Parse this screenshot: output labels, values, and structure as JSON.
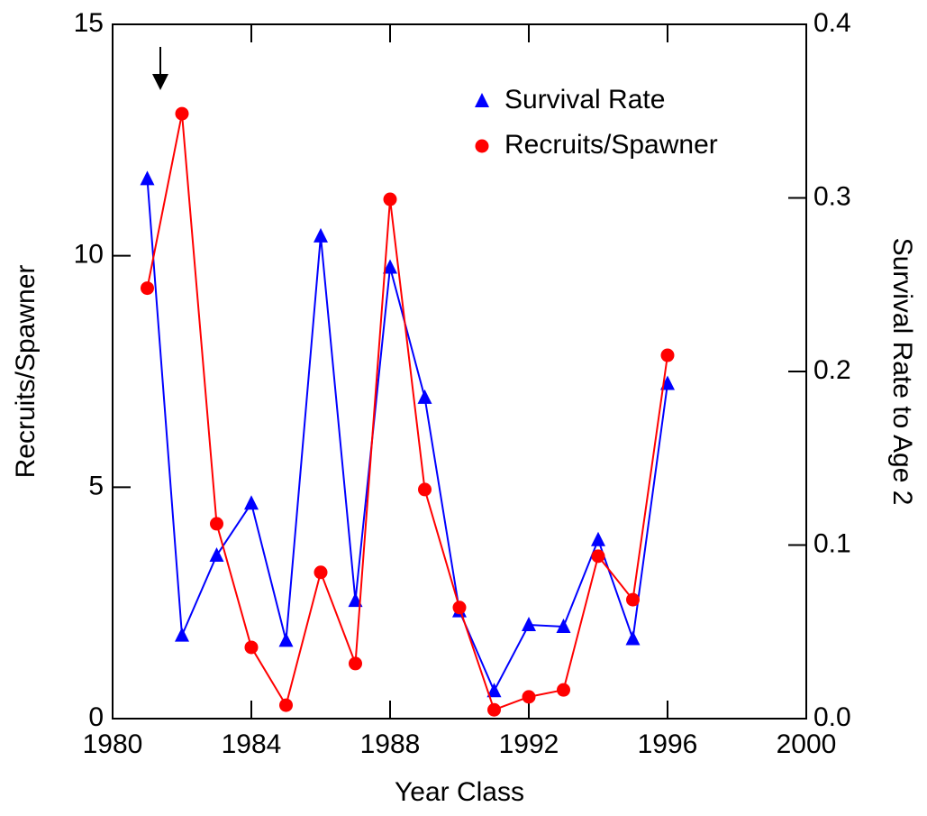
{
  "chart_data": {
    "type": "line",
    "xlabel": "Year Class",
    "ylabel": "Recruits/Spawner",
    "y2label": "Survival Rate to Age 2",
    "x": [
      1981,
      1982,
      1983,
      1984,
      1985,
      1986,
      1987,
      1988,
      1989,
      1990,
      1991,
      1992,
      1993,
      1994,
      1995,
      1996
    ],
    "series": [
      {
        "name": "Survival Rate",
        "color": "#0000ff",
        "marker": "triangle",
        "axis": "y2",
        "values": [
          0.311,
          0.048,
          0.094,
          0.124,
          0.045,
          0.278,
          0.068,
          0.26,
          0.185,
          0.062,
          0.016,
          0.054,
          0.053,
          0.103,
          0.046,
          0.193
        ]
      },
      {
        "name": "Recruits/Spawner",
        "color": "#ff0000",
        "marker": "circle",
        "axis": "y",
        "values": [
          9.3,
          13.07,
          4.21,
          1.54,
          0.29,
          3.16,
          1.19,
          11.22,
          4.95,
          2.4,
          0.19,
          0.47,
          0.62,
          3.51,
          2.57,
          7.85
        ]
      }
    ],
    "xlim": [
      1980,
      2000
    ],
    "xticks": [
      1980,
      1984,
      1988,
      1992,
      1996,
      2000
    ],
    "ylim": [
      0,
      15
    ],
    "yticks": [
      0,
      5,
      10,
      15
    ],
    "y2lim": [
      0,
      0.4
    ],
    "y2ticks": [
      {
        "value": 0,
        "label": "0.0"
      },
      0.1,
      0.2,
      0.3,
      0.4
    ],
    "legend": "upper right",
    "grid": false
  }
}
